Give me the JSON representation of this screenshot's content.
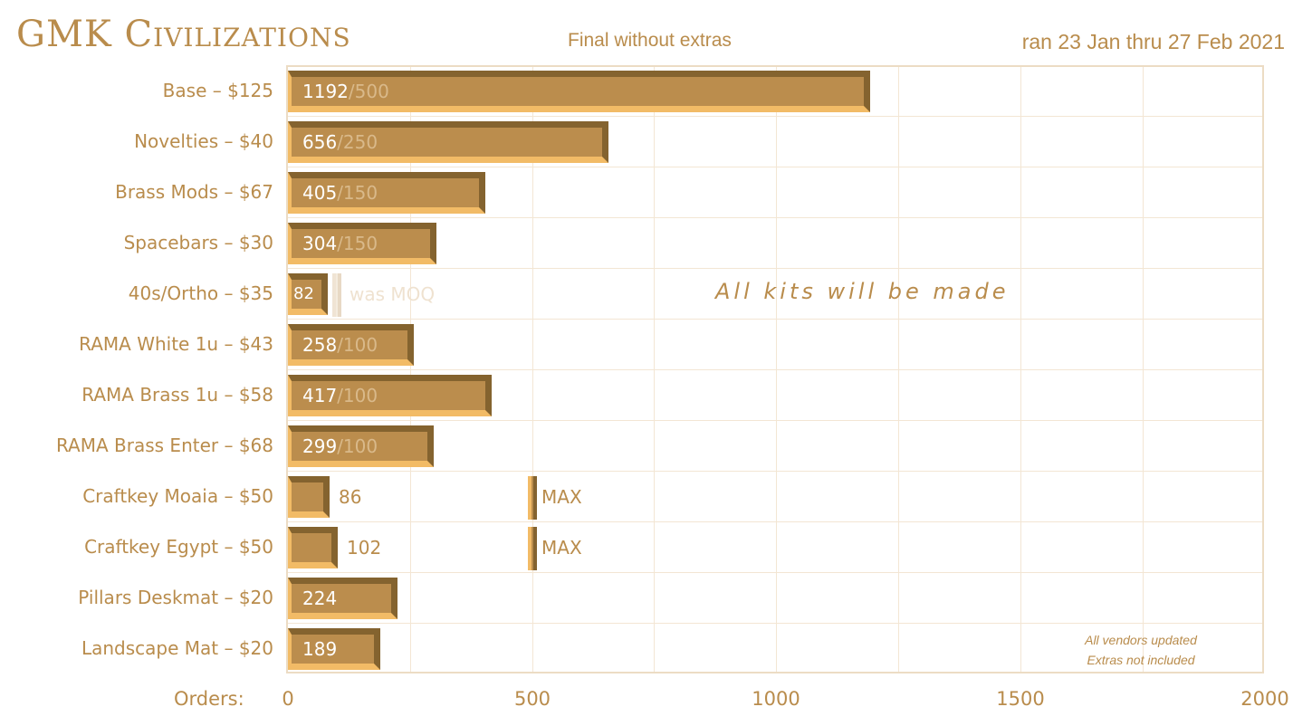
{
  "header": {
    "title": "GMK Civilizations",
    "subtitle": "Final without extras",
    "date_range": "ran 23 Jan thru 27 Feb 2021"
  },
  "annotations": {
    "center": "All kits will be made",
    "note_line1": "All vendors updated",
    "note_line2": "Extras not included",
    "was_moq": "was MOQ",
    "max_label": "MAX"
  },
  "colors": {
    "text": "#b98c4c",
    "bar_face": "#bb8d4d",
    "bar_dark": "#84632f",
    "bar_light": "#f2bb66",
    "grid": "#f3e6d4"
  },
  "chart_data": {
    "type": "bar",
    "orientation": "horizontal",
    "title": "GMK Civilizations",
    "subtitle": "Final without extras",
    "xlabel": "Orders:",
    "ylabel": "",
    "xlim": [
      0,
      2000
    ],
    "xticks": [
      "0",
      "500",
      "1000",
      "1500",
      "2000"
    ],
    "grid": true,
    "categories": [
      "Base – $125",
      "Novelties – $40",
      "Brass Mods – $67",
      "Spacebars – $30",
      "40s/Ortho – $35",
      "RAMA White 1u – $43",
      "RAMA Brass 1u – $58",
      "RAMA Brass Enter – $68",
      "Craftkey Moaia – $50",
      "Craftkey Egypt – $50",
      "Pillars Deskmat – $20",
      "Landscape Mat – $20"
    ],
    "values": [
      1192,
      656,
      405,
      304,
      82,
      258,
      417,
      299,
      86,
      102,
      224,
      189
    ],
    "moq": [
      500,
      250,
      150,
      150,
      100,
      100,
      100,
      100,
      null,
      null,
      null,
      null
    ],
    "max": [
      null,
      null,
      null,
      null,
      null,
      null,
      null,
      null,
      500,
      500,
      null,
      null
    ],
    "value_labels": [
      "1192",
      "656",
      "405",
      "304",
      "82",
      "258",
      "417",
      "299",
      "86",
      "102",
      "224",
      "189"
    ],
    "moq_labels": [
      "/500",
      "/250",
      "/150",
      "/150",
      "",
      "/100",
      "/100",
      "/100",
      "",
      "",
      "",
      ""
    ],
    "annotations": [
      "All kits will be made",
      "was MOQ",
      "MAX",
      "All vendors updated",
      "Extras not included"
    ]
  }
}
